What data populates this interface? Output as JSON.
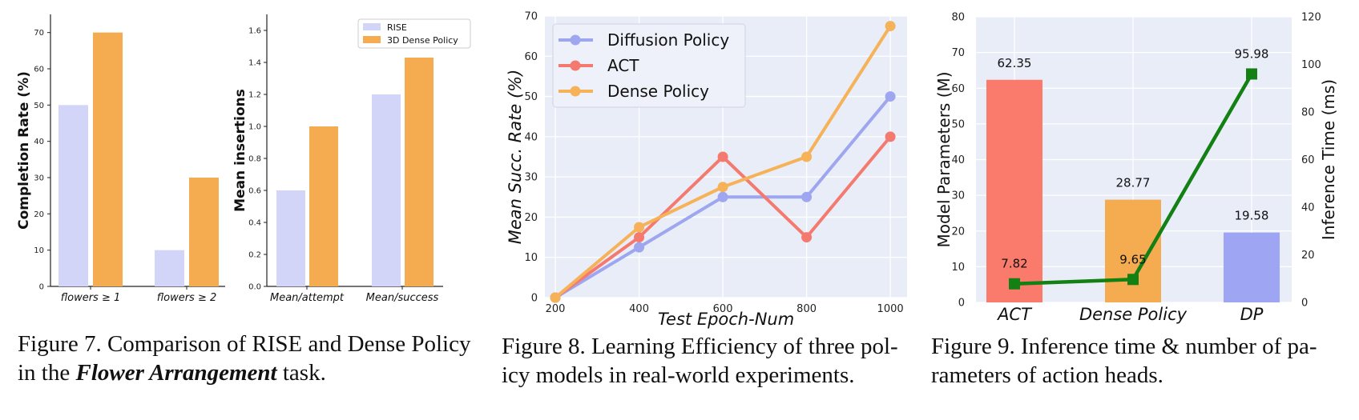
{
  "chart_data": [
    {
      "type": "bar",
      "categories": [
        "flowers ≥ 1",
        "flowers ≥ 2"
      ],
      "series": [
        {
          "name": "RISE",
          "values": [
            50,
            10
          ],
          "color": "#d2d5f7"
        },
        {
          "name": "3D Dense Policy",
          "values": [
            70,
            30
          ],
          "color": "#f5ab50"
        }
      ],
      "ylabel": "Completion Rate (%)",
      "ylim": [
        0,
        75
      ],
      "yticks": [
        0,
        10,
        20,
        30,
        40,
        50,
        60,
        70
      ],
      "ytick_labels": [
        "0",
        "10",
        "20",
        "30",
        "40",
        "50",
        "60",
        "70"
      ]
    },
    {
      "type": "bar",
      "categories": [
        "Mean/attempt",
        "Mean/success"
      ],
      "series": [
        {
          "name": "RISE",
          "values": [
            0.6,
            1.2
          ],
          "color": "#d2d5f7"
        },
        {
          "name": "3D Dense Policy",
          "values": [
            1.0,
            1.43
          ],
          "color": "#f5ab50"
        }
      ],
      "ylabel": "Mean insertions",
      "ylim": [
        0,
        1.7
      ],
      "yticks": [
        0,
        0.2,
        0.4,
        0.6,
        0.8,
        1.0,
        1.2,
        1.4,
        1.6
      ],
      "ytick_labels": [
        "0.0",
        "0.2",
        "0.4",
        "0.6",
        "0.8",
        "1.0",
        "1.2",
        "1.4",
        "1.6"
      ],
      "legend": "top-right",
      "legend_labels": [
        "RISE",
        "3D Dense Policy"
      ]
    },
    {
      "type": "line",
      "x": [
        200,
        400,
        600,
        800,
        1000
      ],
      "series": [
        {
          "name": "Diffusion Policy",
          "values": [
            0,
            12.5,
            25,
            25,
            50
          ],
          "color": "#9ea6ef"
        },
        {
          "name": "ACT",
          "values": [
            0,
            15,
            35,
            15,
            40
          ],
          "color": "#f47a70"
        },
        {
          "name": "Dense Policy",
          "values": [
            0,
            17.5,
            27.5,
            35,
            67.5
          ],
          "color": "#f5b259"
        }
      ],
      "xlabel": "Test Epoch-Num",
      "ylabel": "Mean Succ. Rate (%)",
      "xlim": [
        175,
        1040
      ],
      "ylim": [
        0,
        70
      ],
      "xticks": [
        200,
        400,
        600,
        800,
        1000
      ],
      "xtick_labels": [
        "200",
        "400",
        "600",
        "800",
        "1000"
      ],
      "yticks": [
        0,
        10,
        20,
        30,
        40,
        50,
        60,
        70
      ],
      "ytick_labels": [
        "0",
        "10",
        "20",
        "30",
        "40",
        "50",
        "60",
        "70"
      ],
      "legend": "top-left",
      "legend_labels": [
        "Diffusion Policy",
        "ACT",
        "Dense Policy"
      ]
    },
    {
      "type": "bar",
      "categories": [
        "ACT",
        "Dense Policy",
        "DP"
      ],
      "bar_values": [
        62.35,
        28.77,
        19.58
      ],
      "bar_labels": [
        "62.35",
        "28.77",
        "19.58"
      ],
      "bar_colors": [
        "#fa7a6b",
        "#f5ab50",
        "#9ea6f3"
      ],
      "line_series": {
        "name": "Inference Time (ms)",
        "values": [
          7.82,
          9.65,
          95.98
        ],
        "labels": [
          "7.82",
          "9.65",
          "95.98"
        ],
        "color": "#128012"
      },
      "ylabel": "Model Parameters (M)",
      "y2label": "Inference Time (ms)",
      "ylim": [
        0,
        80
      ],
      "y2lim": [
        0,
        120
      ],
      "yticks": [
        0,
        10,
        20,
        30,
        40,
        50,
        60,
        70,
        80
      ],
      "ytick_labels": [
        "0",
        "10",
        "20",
        "30",
        "40",
        "50",
        "60",
        "70",
        "80"
      ],
      "y2ticks": [
        0,
        20,
        40,
        60,
        80,
        100,
        120
      ],
      "y2tick_labels": [
        "0",
        "20",
        "40",
        "60",
        "80",
        "100",
        "120"
      ]
    }
  ],
  "captions": {
    "fig7_line1": "Figure 7. Comparison of RISE and Dense Policy",
    "fig7_line2_prefix": "in the",
    "fig7_line2_bold": "Flower Arrangement",
    "fig7_line2_suffix": "task.",
    "fig8_line1": "Figure 8. Learning Efficiency of three pol-",
    "fig8_line2": "icy models in real-world experiments.",
    "fig9_line1": "Figure 9.  Inference time & number of pa-",
    "fig9_line2": "rameters of action heads."
  }
}
